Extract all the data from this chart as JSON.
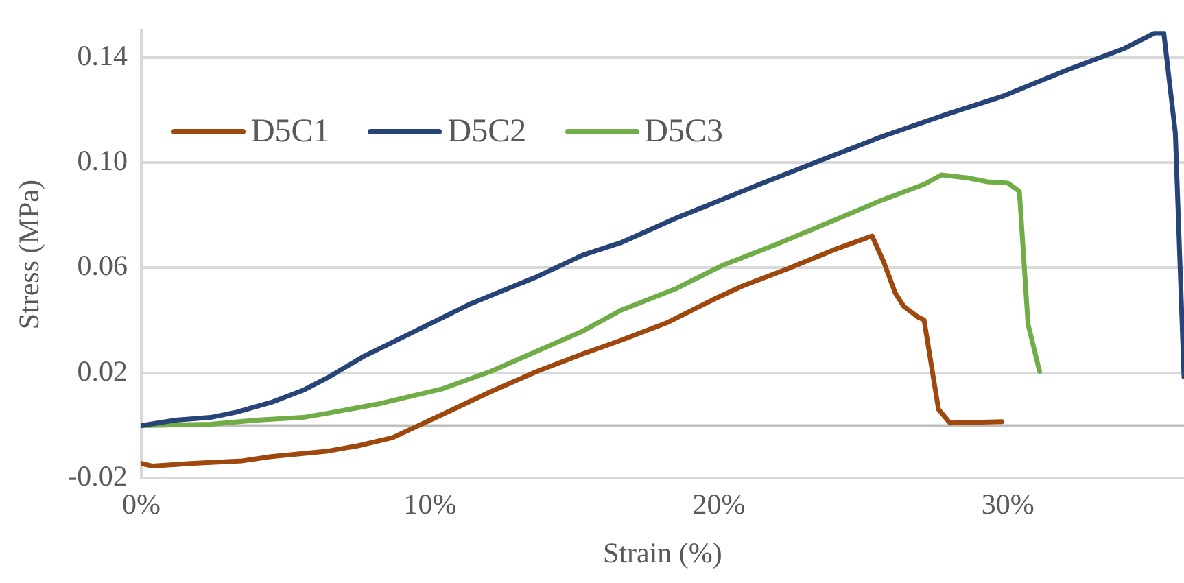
{
  "chart_data": {
    "type": "line",
    "xlabel": "Strain (%)",
    "ylabel": "Stress (MPa)",
    "xlim": [
      0,
      36.1
    ],
    "xticks": [
      {
        "value": 0,
        "label": "0%"
      },
      {
        "value": 10,
        "label": "10%"
      },
      {
        "value": 20,
        "label": "20%"
      },
      {
        "value": 30,
        "label": "30%"
      }
    ],
    "ylim": [
      -0.02,
      0.15
    ],
    "yticks": [
      -0.02,
      0.02,
      0.06,
      {
        "value": 0.1,
        "label": "0.10"
      },
      0.14
    ],
    "grid": "y",
    "legend": "top left",
    "marker": "none",
    "line_style": "solid",
    "ref_lines": [
      {
        "axis": "y",
        "value": 0,
        "color": "#bfbfbf"
      }
    ],
    "series": [
      {
        "name": "D5C1",
        "color": "#9e480e",
        "x": [
          0,
          0.4,
          1.7,
          3.5,
          4.5,
          6.4,
          7.5,
          8.7,
          9.5,
          10.4,
          12.1,
          13.7,
          15.3,
          16.6,
          18.2,
          19.8,
          20.8,
          22.4,
          24.0,
          25.3,
          25.7,
          26.1,
          26.4,
          26.9,
          27.1,
          27.6,
          28.0,
          29.8
        ],
        "values": [
          -0.0144,
          -0.0154,
          -0.0144,
          -0.0134,
          -0.0118,
          -0.0098,
          -0.0077,
          -0.0046,
          -0.0005,
          0.0041,
          0.0129,
          0.0206,
          0.0273,
          0.0324,
          0.0391,
          0.0479,
          0.053,
          0.0597,
          0.0669,
          0.0721,
          0.0623,
          0.0505,
          0.0453,
          0.0412,
          0.0402,
          0.0062,
          0.001,
          0.0015
        ]
      },
      {
        "name": "D5C2",
        "color": "#264478",
        "x": [
          0,
          1.2,
          2.4,
          3.3,
          4.5,
          5.6,
          6.5,
          7.7,
          9.5,
          11.4,
          13.7,
          15.3,
          16.6,
          18.5,
          21.4,
          23.8,
          25.6,
          27.9,
          29.8,
          32.1,
          34.0,
          35.1,
          35.4,
          35.8,
          36.1
        ],
        "values": [
          0,
          0.0021,
          0.0031,
          0.0051,
          0.0088,
          0.0134,
          0.0185,
          0.0263,
          0.036,
          0.0463,
          0.0566,
          0.0649,
          0.0695,
          0.0788,
          0.0917,
          0.102,
          0.1097,
          0.1184,
          0.1251,
          0.1354,
          0.1432,
          0.1493,
          0.1493,
          0.1112,
          0.0185
        ]
      },
      {
        "name": "D5C3",
        "color": "#70ad47",
        "x": [
          0,
          2.4,
          4.0,
          5.6,
          6.4,
          8.2,
          10.4,
          12.1,
          13.7,
          15.3,
          16.6,
          18.5,
          20.1,
          21.9,
          23.8,
          25.6,
          27.1,
          27.7,
          28.6,
          29.3,
          30.0,
          30.4,
          30.7,
          31.1
        ],
        "values": [
          0,
          0.0005,
          0.0021,
          0.0031,
          0.0046,
          0.0082,
          0.0139,
          0.0206,
          0.0283,
          0.036,
          0.0438,
          0.052,
          0.0608,
          0.0685,
          0.0772,
          0.0855,
          0.0917,
          0.0953,
          0.0942,
          0.0927,
          0.0922,
          0.0891,
          0.0386,
          0.0206
        ]
      }
    ]
  }
}
